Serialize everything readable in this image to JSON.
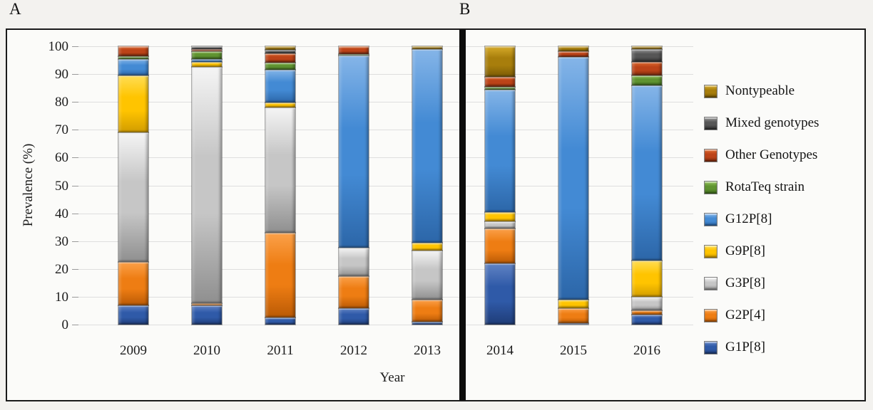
{
  "panel_labels": {
    "a": "A",
    "b": "B"
  },
  "y_axis": {
    "title": "Prevalence (%)",
    "ticks": [
      0,
      10,
      20,
      30,
      40,
      50,
      60,
      70,
      80,
      90,
      100
    ]
  },
  "x_axis": {
    "title": "Year"
  },
  "legend": {
    "items": [
      {
        "label": "Nontypeable"
      },
      {
        "label": "Mixed genotypes"
      },
      {
        "label": "Other Genotypes"
      },
      {
        "label": "RotaTeq strain"
      },
      {
        "label": "G12P[8]"
      },
      {
        "label": "G9P[8]"
      },
      {
        "label": "G3P[8]"
      },
      {
        "label": "G2P[4]"
      },
      {
        "label": "G1P[8]"
      }
    ]
  },
  "chart_data": {
    "type": "bar",
    "stacked": true,
    "title": "",
    "xlabel": "Year",
    "ylabel": "Prevalence (%)",
    "ylim": [
      0,
      100
    ],
    "grid": true,
    "legend_position": "right",
    "categories": [
      "2009",
      "2010",
      "2011",
      "2012",
      "2013",
      "2014",
      "2015",
      "2016"
    ],
    "panels": [
      {
        "label": "A",
        "categories": [
          "2009",
          "2010",
          "2011",
          "2012",
          "2013"
        ]
      },
      {
        "label": "B",
        "categories": [
          "2014",
          "2015",
          "2016"
        ]
      }
    ],
    "series": [
      {
        "name": "G1P[8]",
        "values": [
          7,
          7,
          2.5,
          6,
          1,
          22,
          0.5,
          3.5
        ]
      },
      {
        "name": "G2P[4]",
        "values": [
          15.5,
          0.7,
          30.5,
          11.5,
          8,
          12.5,
          5.5,
          1.7
        ]
      },
      {
        "name": "G3P[8]",
        "values": [
          46.5,
          84.8,
          45,
          10,
          17.5,
          2.5,
          0,
          4.8
        ]
      },
      {
        "name": "G9P[8]",
        "values": [
          20.5,
          2,
          1.7,
          0,
          3,
          3.5,
          3,
          13
        ]
      },
      {
        "name": "G12P[8]",
        "values": [
          6,
          0.8,
          11.8,
          69.3,
          69.5,
          44,
          87.2,
          63
        ]
      },
      {
        "name": "RotaTeq strain",
        "values": [
          1,
          3,
          2.5,
          0.5,
          0,
          1,
          0,
          3.5
        ]
      },
      {
        "name": "Other Genotypes",
        "values": [
          3.5,
          0.7,
          3.5,
          2.7,
          0,
          3.5,
          2,
          5
        ]
      },
      {
        "name": "Mixed genotypes",
        "values": [
          0,
          1,
          1.3,
          0,
          0,
          0,
          0,
          4.5
        ]
      },
      {
        "name": "Nontypeable",
        "values": [
          0,
          0,
          1.2,
          0,
          1,
          11,
          1.8,
          1
        ]
      }
    ],
    "colors": {
      "G1P[8]": {
        "light": "#6183C4",
        "base": "#2F5AA8",
        "dark": "#1F3C77"
      },
      "G2P[4]": {
        "light": "#FBA14A",
        "base": "#EE7D13",
        "dark": "#BA5A05"
      },
      "G3P[8]": {
        "light": "#F5F5F5",
        "base": "#C6C6C6",
        "dark": "#8F8F8F"
      },
      "G9P[8]": {
        "light": "#FFDE55",
        "base": "#FFC400",
        "dark": "#D19C00"
      },
      "G12P[8]": {
        "light": "#85B5E8",
        "base": "#438AD4",
        "dark": "#2C66A8"
      },
      "RotaTeq strain": {
        "light": "#93C25B",
        "base": "#5F9330",
        "dark": "#3F6B1C"
      },
      "Other Genotypes": {
        "light": "#E06A2F",
        "base": "#BC4318",
        "dark": "#7E2A0C"
      },
      "Mixed genotypes": {
        "light": "#9A9A9A",
        "base": "#565656",
        "dark": "#2E2E2E"
      },
      "Nontypeable": {
        "light": "#D8AC2B",
        "base": "#A87E0C",
        "dark": "#7A5A06"
      }
    }
  }
}
